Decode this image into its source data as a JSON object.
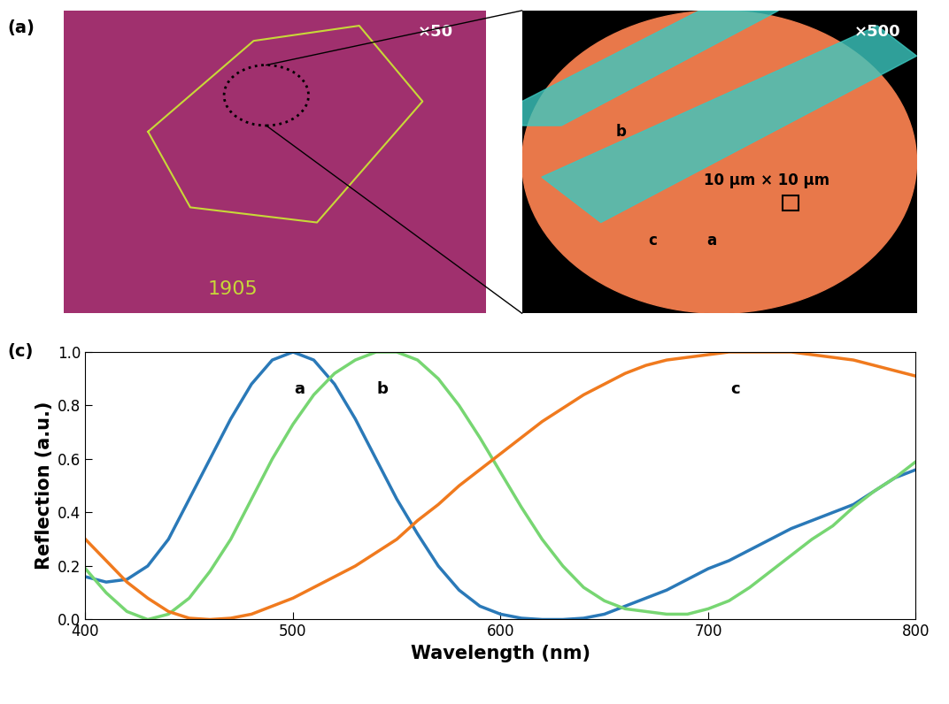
{
  "chart_data": {
    "type": "line",
    "panel_label": "(c)",
    "x_label": "Wavelength (nm)",
    "y_label": "Reflection (a.u.)",
    "x": [
      400,
      410,
      420,
      430,
      440,
      450,
      460,
      470,
      480,
      490,
      500,
      510,
      520,
      530,
      540,
      550,
      560,
      570,
      580,
      590,
      600,
      610,
      620,
      630,
      640,
      650,
      660,
      670,
      680,
      690,
      700,
      710,
      720,
      730,
      740,
      750,
      760,
      770,
      780,
      790,
      800
    ],
    "series": [
      {
        "name": "a",
        "color": "#2a79b8",
        "values": [
          0.16,
          0.14,
          0.15,
          0.2,
          0.3,
          0.45,
          0.6,
          0.75,
          0.88,
          0.97,
          1.0,
          0.97,
          0.88,
          0.75,
          0.6,
          0.45,
          0.32,
          0.2,
          0.11,
          0.05,
          0.02,
          0.005,
          0.0,
          0.0,
          0.005,
          0.02,
          0.05,
          0.08,
          0.11,
          0.15,
          0.19,
          0.22,
          0.26,
          0.3,
          0.34,
          0.37,
          0.4,
          0.43,
          0.48,
          0.53,
          0.56
        ]
      },
      {
        "name": "b",
        "color": "#77d672",
        "values": [
          0.19,
          0.1,
          0.03,
          0.0,
          0.02,
          0.08,
          0.18,
          0.3,
          0.45,
          0.6,
          0.73,
          0.84,
          0.92,
          0.97,
          1.0,
          1.0,
          0.97,
          0.9,
          0.8,
          0.68,
          0.55,
          0.42,
          0.3,
          0.2,
          0.12,
          0.07,
          0.04,
          0.03,
          0.02,
          0.02,
          0.04,
          0.07,
          0.12,
          0.18,
          0.24,
          0.3,
          0.35,
          0.42,
          0.48,
          0.53,
          0.59
        ]
      },
      {
        "name": "c",
        "color": "#f07a1e",
        "values": [
          0.3,
          0.22,
          0.14,
          0.08,
          0.03,
          0.005,
          0.0,
          0.005,
          0.02,
          0.05,
          0.08,
          0.12,
          0.16,
          0.2,
          0.25,
          0.3,
          0.37,
          0.43,
          0.5,
          0.56,
          0.62,
          0.68,
          0.74,
          0.79,
          0.84,
          0.88,
          0.92,
          0.95,
          0.97,
          0.98,
          0.99,
          1.0,
          1.0,
          1.0,
          1.0,
          0.99,
          0.98,
          0.97,
          0.95,
          0.93,
          0.91
        ]
      }
    ],
    "xlim": [
      400,
      800
    ],
    "xticks": [
      400,
      500,
      600,
      700,
      800
    ],
    "ylim": [
      0,
      1
    ],
    "yticks": [
      {
        "value": 0,
        "label": "0.0"
      },
      0.2,
      0.4,
      0.6,
      0.8,
      {
        "value": 1,
        "label": "1.0"
      }
    ],
    "grid": false
  },
  "image_panel": {
    "panel_label": "(a)",
    "images": [
      {
        "magnification": "×50",
        "texts": [
          "1905"
        ]
      },
      {
        "magnification": "×500",
        "texts": [
          "b",
          "10 μm × 10 μm",
          "c",
          "a"
        ]
      }
    ]
  }
}
